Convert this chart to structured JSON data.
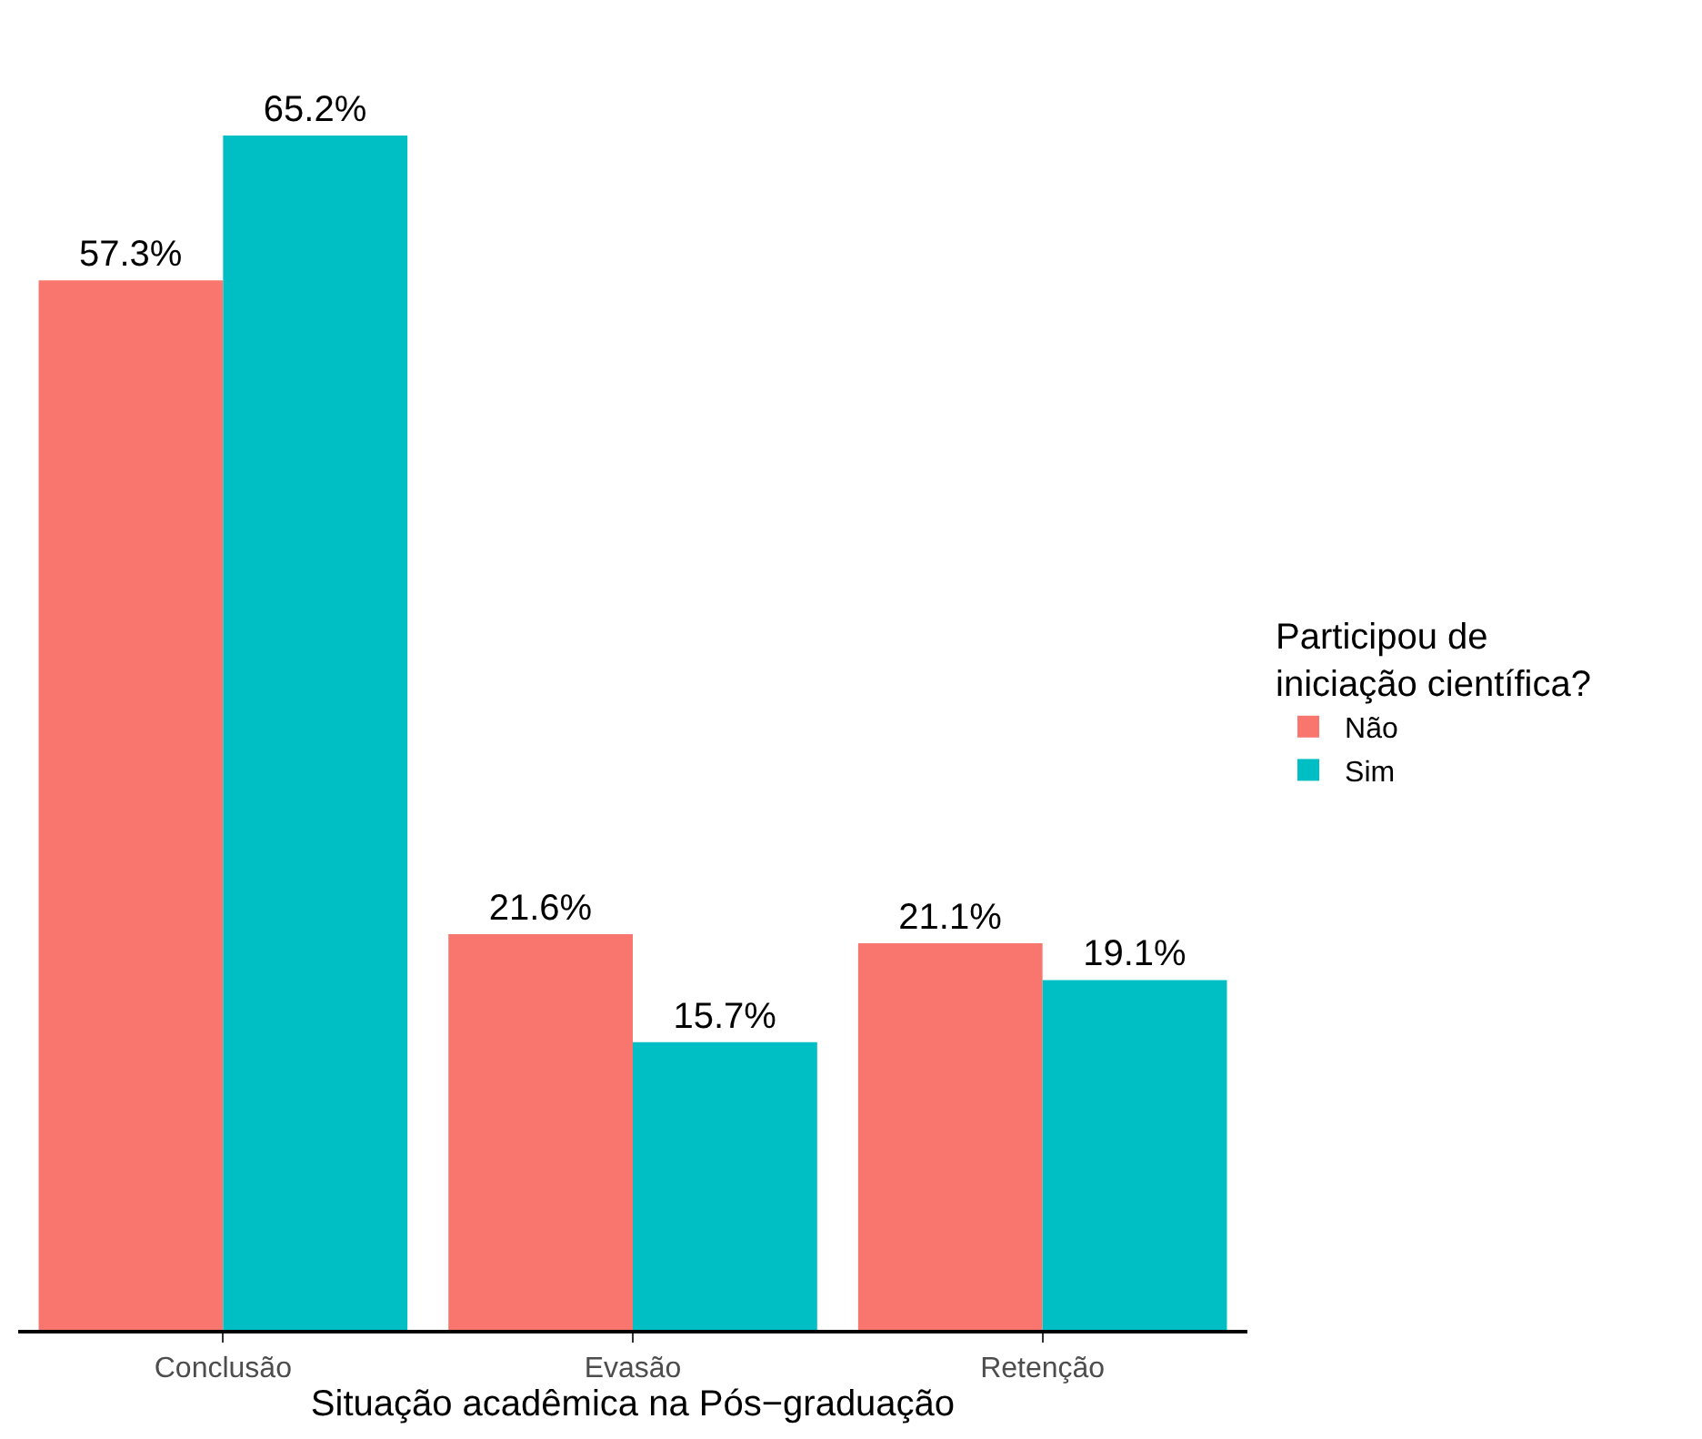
{
  "chart_data": {
    "type": "bar",
    "xlabel": "Situação acadêmica na Pós−graduação",
    "legend_title": "Participou de\niniciação científica?",
    "categories": [
      "Conclusão",
      "Evasão",
      "Retenção"
    ],
    "series": [
      {
        "name": "Não",
        "color": "#f8766d",
        "values": [
          57.3,
          21.6,
          21.1
        ],
        "value_labels": [
          "57.3%",
          "21.6%",
          "21.1%"
        ]
      },
      {
        "name": "Sim",
        "color": "#00bfc4",
        "values": [
          65.2,
          15.7,
          19.1
        ],
        "value_labels": [
          "65.2%",
          "15.7%",
          "19.1%"
        ]
      }
    ],
    "legend": "right",
    "tick_labels": "x"
  }
}
